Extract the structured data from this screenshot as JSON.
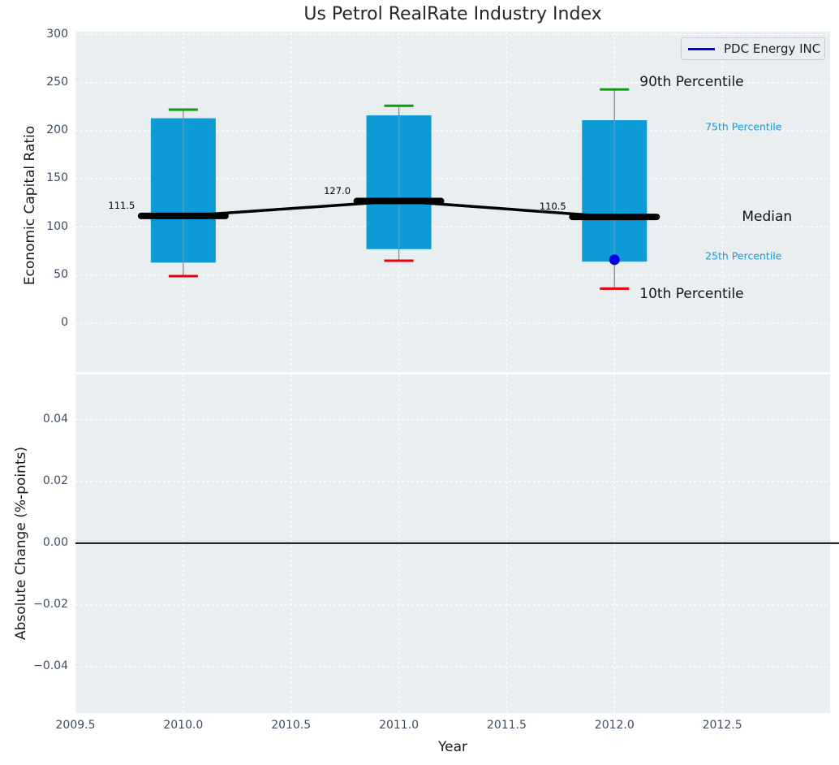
{
  "title": "Us Petrol RealRate Industry Index",
  "legend": {
    "label": "PDC Energy INC",
    "line_color": "#0000e6"
  },
  "colors": {
    "box": "#0c9bd7",
    "whisker": "#8c8c8c",
    "cap_top": "#0a9c0a",
    "cap_bottom": "#e8000d",
    "median": "#000000",
    "company": "#0000e6",
    "annotation_cyan": "#189ad6",
    "zero_line": "#111111"
  },
  "chart_data": [
    {
      "type": "box",
      "title": "Us Petrol RealRate Industry Index",
      "ylabel": "Economic Capital Ratio",
      "ylim": [
        -50.6,
        303
      ],
      "yticks": [
        {
          "v": 300,
          "label": "300"
        },
        {
          "v": 250,
          "label": "250"
        },
        {
          "v": 200,
          "label": "200"
        },
        {
          "v": 150,
          "label": "150"
        },
        {
          "v": 100,
          "label": "100"
        },
        {
          "v": 50,
          "label": "50"
        },
        {
          "v": 0,
          "label": "0"
        }
      ],
      "boxes": [
        {
          "year": 2010,
          "p10": 49,
          "p25": 63,
          "median": 111.5,
          "p75": 213,
          "p90": 222,
          "label": "111.5"
        },
        {
          "year": 2011,
          "p10": 65,
          "p25": 77,
          "median": 127.0,
          "p75": 216,
          "p90": 226,
          "label": "127.0"
        },
        {
          "year": 2012,
          "p10": 36,
          "p25": 64,
          "median": 110.5,
          "p75": 211,
          "p90": 243,
          "label": "110.5"
        }
      ],
      "company_series": {
        "name": "PDC Energy INC",
        "points": [
          {
            "year": 2012,
            "value": 66
          }
        ]
      },
      "percentile_labels": {
        "p90": "90th Percentile",
        "p75": "75th Percentile",
        "median": "Median",
        "p25": "25th Percentile",
        "p10": "10th Percentile"
      },
      "legend_position": "upper right",
      "grid": true
    },
    {
      "type": "line",
      "ylabel": "Absolute Change (%-points)",
      "xlabel": "Year",
      "ylim": [
        -0.055,
        0.0547
      ],
      "xlim": [
        2009.5,
        2013.0
      ],
      "yticks": [
        {
          "v": 0.04,
          "label": "0.04"
        },
        {
          "v": 0.02,
          "label": "0.02"
        },
        {
          "v": 0.0,
          "label": "0.00"
        },
        {
          "v": -0.02,
          "label": "−0.02"
        },
        {
          "v": -0.04,
          "label": "−0.04"
        }
      ],
      "xticks": [
        {
          "v": 2009.5,
          "label": "2009.5"
        },
        {
          "v": 2010.0,
          "label": "2010.0"
        },
        {
          "v": 2010.5,
          "label": "2010.5"
        },
        {
          "v": 2011.0,
          "label": "2011.0"
        },
        {
          "v": 2011.5,
          "label": "2011.5"
        },
        {
          "v": 2012.0,
          "label": "2012.0"
        },
        {
          "v": 2012.5,
          "label": "2012.5"
        }
      ],
      "zero_line": 0.0,
      "grid": true
    }
  ]
}
